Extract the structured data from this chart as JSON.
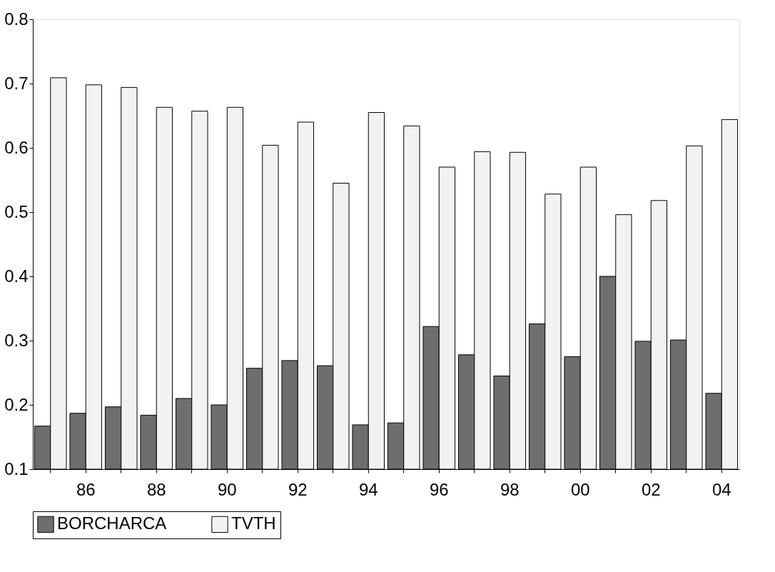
{
  "chart_data": {
    "type": "bar",
    "categories": [
      null,
      "86",
      null,
      "88",
      null,
      "90",
      null,
      "92",
      null,
      "94",
      null,
      "96",
      null,
      "98",
      null,
      "00",
      null,
      "02",
      null,
      "04"
    ],
    "series": [
      {
        "name": "BORCHARCA",
        "color": "#6e6e6e",
        "values": [
          0.167,
          0.187,
          0.197,
          0.184,
          0.21,
          0.2,
          0.257,
          0.269,
          0.261,
          0.169,
          0.172,
          0.322,
          0.278,
          0.245,
          0.326,
          0.275,
          0.4,
          0.299,
          0.301,
          0.218
        ]
      },
      {
        "name": "TVTH",
        "color": "#f2f2f2",
        "values": [
          0.709,
          0.698,
          0.694,
          0.663,
          0.657,
          0.663,
          0.604,
          0.64,
          0.545,
          0.655,
          0.634,
          0.57,
          0.594,
          0.593,
          0.528,
          0.57,
          0.496,
          0.518,
          0.603,
          0.644
        ]
      }
    ],
    "ylim": [
      0.1,
      0.8
    ],
    "yticks": [
      0.1,
      0.2,
      0.3,
      0.4,
      0.5,
      0.6,
      0.7,
      0.8
    ],
    "grid": false,
    "legend": "bottom"
  }
}
